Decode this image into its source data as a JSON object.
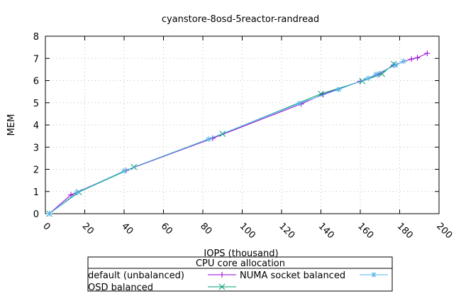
{
  "chart_data": {
    "type": "line",
    "title": "cyanstore-8osd-5reactor-randread",
    "xlabel": "IOPS (thousand)",
    "ylabel": "MEM",
    "xlim": [
      0,
      200
    ],
    "ylim": [
      0,
      8
    ],
    "xticks": [
      0,
      20,
      40,
      60,
      80,
      100,
      120,
      140,
      160,
      180,
      200
    ],
    "yticks": [
      0,
      1,
      2,
      3,
      4,
      5,
      6,
      7,
      8
    ],
    "grid": true,
    "legend": {
      "title": "CPU core allocation",
      "placement": "bottom"
    },
    "series": [
      {
        "name": "default (unbalanced)",
        "color": "#9400d3",
        "marker": "plus",
        "points": [
          [
            2,
            0
          ],
          [
            13,
            0.85
          ],
          [
            41,
            1.95
          ],
          [
            85,
            3.4
          ],
          [
            130,
            4.95
          ],
          [
            141,
            5.38
          ],
          [
            160,
            5.97
          ],
          [
            169,
            6.27
          ],
          [
            177,
            6.7
          ],
          [
            186,
            6.97
          ],
          [
            189,
            7.03
          ],
          [
            194,
            7.23
          ]
        ]
      },
      {
        "name": "OSD balanced",
        "color": "#009e73",
        "marker": "cross",
        "points": [
          [
            2,
            0
          ],
          [
            17,
            0.97
          ],
          [
            45,
            2.1
          ],
          [
            90,
            3.6
          ],
          [
            140,
            5.4
          ],
          [
            161,
            5.98
          ],
          [
            171,
            6.3
          ],
          [
            177,
            6.75
          ]
        ]
      },
      {
        "name": "NUMA socket balanced",
        "color": "#56b4e9",
        "marker": "star",
        "points": [
          [
            2,
            0
          ],
          [
            16,
            0.95
          ],
          [
            40,
            1.93
          ],
          [
            83,
            3.36
          ],
          [
            129,
            4.97
          ],
          [
            149,
            5.6
          ],
          [
            164,
            6.1
          ],
          [
            168,
            6.28
          ],
          [
            178,
            6.7
          ],
          [
            182,
            6.87
          ]
        ]
      }
    ]
  }
}
